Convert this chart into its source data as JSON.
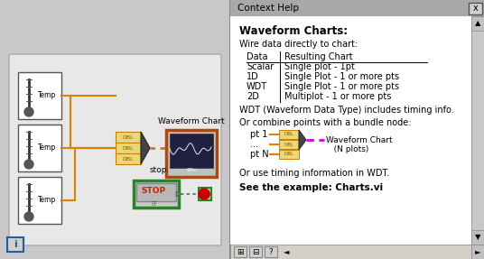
{
  "left_bg": "#c8c8c8",
  "left_border": "#888888",
  "right_panel": {
    "title_text": "Context Help",
    "bold_heading": "Waveform Charts:",
    "line1": "Wire data directly to chart:",
    "table_header_col1": "Data",
    "table_header_col2": "Resulting Chart",
    "table_rows": [
      [
        "Scalar",
        "Single plot - 1pt"
      ],
      [
        "1D",
        "Single Plot - 1 or more pts"
      ],
      [
        "WDT",
        "Single Plot - 1 or more pts"
      ],
      [
        "2D",
        "Multiplot - 1 or more pts"
      ]
    ],
    "wdt_note": "WDT (Waveform Data Type) includes timing info.",
    "bundle_note": "Or combine points with a bundle node:",
    "bundle_pt1": "pt 1",
    "bundle_dots": "...",
    "bundle_ptN": "pt N",
    "bundle_chart_label1": "Waveform Chart",
    "bundle_chart_label2": "   (N plots)",
    "timing_note": "Or use timing information in WDT.",
    "see_example": "See the example: Charts.vi"
  },
  "colors": {
    "orange_wire": "#e08000",
    "dbl_box_fill": "#e8d878",
    "dbl_box_edge": "#c88000",
    "bundle_arrow": "#333333",
    "stop_green_border": "#228822",
    "stop_btn_bg": "#c0c0c0",
    "stop_btn_red": "#cc2200",
    "stop_text": "#cc0000",
    "red_dot": "#cc0000",
    "green_dot_wire": "#228822",
    "chart_border": "#bb4400",
    "chart_inner_bg": "#202040",
    "magenta_wire": "#dd00dd",
    "panel_bg": "#d4d0c8",
    "title_bar_bg": "#a0a0a0",
    "scrollbar_bg": "#c8c8c8",
    "content_bg": "#ffffff",
    "white": "#ffffff",
    "black": "#000000"
  }
}
